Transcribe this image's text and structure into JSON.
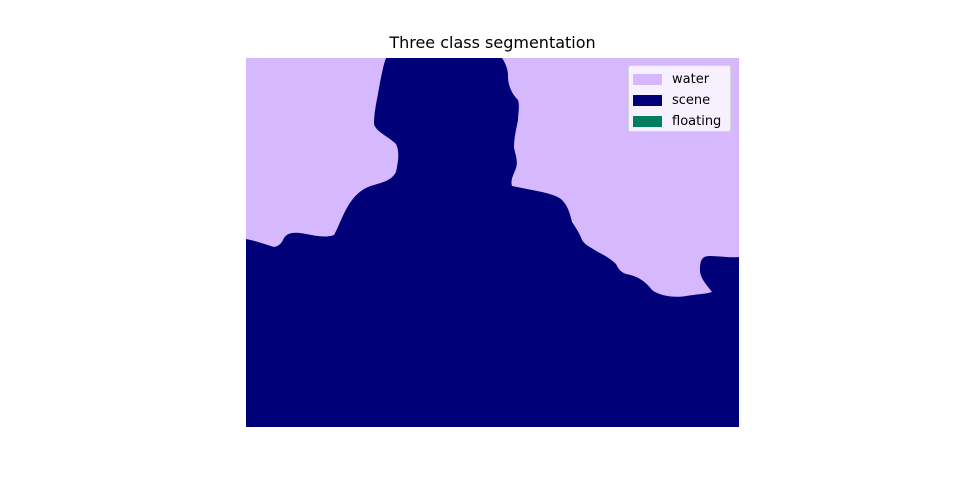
{
  "figure": {
    "title": "Three class segmentation"
  },
  "segmentation": {
    "classes": [
      {
        "label": "water",
        "color": "#d6b8ff"
      },
      {
        "label": "scene",
        "color": "#000078"
      },
      {
        "label": "floating",
        "color": "#007f5f"
      }
    ]
  },
  "legend": {
    "placement": "top-right"
  }
}
